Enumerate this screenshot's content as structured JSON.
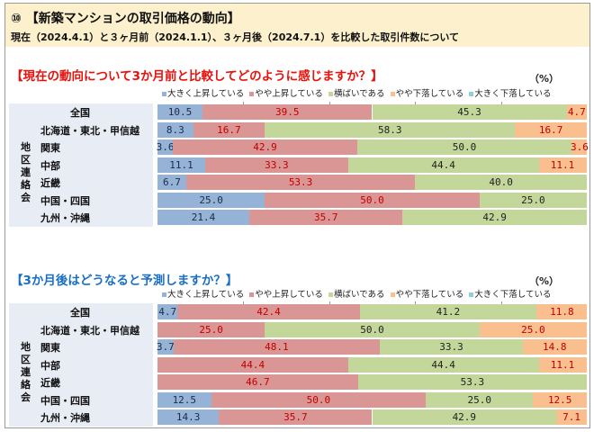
{
  "header": {
    "title": "⑩ 【新築マンションの取引価格の動向】",
    "subtitle": "現在（2024.4.1）と３ヶ月前（2024.1.1）、３ヶ月後（2024.7.1）を比較した取引件数について"
  },
  "colors": {
    "大きく上昇している": "#95b3d7",
    "やや上昇している": "#da9694",
    "横ばいである": "#c4d79b",
    "やや下落している": "#fabf8f",
    "大きく下落している": "#92cddc",
    "title1": "#e8120c",
    "title2": "#1a6fc4"
  },
  "region_group_label": "地区連絡会",
  "chart_data": [
    {
      "type": "bar",
      "stacked": true,
      "orientation": "horizontal",
      "title": "【現在の動向について3か月前と比較してどのように感じますか？】",
      "unit": "（%）",
      "legend": "top-right",
      "series_names": [
        "大きく上昇している",
        "やや上昇している",
        "横ばいである",
        "やや下落している",
        "大きく下落している"
      ],
      "categories": [
        "全国",
        "北海道・東北・甲信越",
        "関東",
        "中部",
        "近畿",
        "中国・四国",
        "九州・沖縄"
      ],
      "values": [
        [
          10.5,
          39.5,
          45.3,
          4.7,
          0
        ],
        [
          8.3,
          16.7,
          58.3,
          16.7,
          0
        ],
        [
          3.6,
          42.9,
          50.0,
          3.6,
          0
        ],
        [
          11.1,
          33.3,
          44.4,
          11.1,
          0
        ],
        [
          6.7,
          53.3,
          40.0,
          0,
          0
        ],
        [
          25.0,
          50.0,
          25.0,
          0,
          0
        ],
        [
          21.4,
          35.7,
          42.9,
          0,
          0
        ]
      ],
      "xlim": [
        0,
        100
      ]
    },
    {
      "type": "bar",
      "stacked": true,
      "orientation": "horizontal",
      "title": "【3か月後はどうなると予測しますか？】",
      "unit": "（%）",
      "legend": "top-right",
      "series_names": [
        "大きく上昇している",
        "やや上昇している",
        "横ばいである",
        "やや下落している",
        "大きく下落している"
      ],
      "categories": [
        "全国",
        "北海道・東北・甲信越",
        "関東",
        "中部",
        "近畿",
        "中国・四国",
        "九州・沖縄"
      ],
      "values": [
        [
          4.7,
          42.4,
          41.2,
          11.8,
          0
        ],
        [
          0,
          25.0,
          50.0,
          25.0,
          0
        ],
        [
          3.7,
          48.1,
          33.3,
          14.8,
          0
        ],
        [
          0,
          44.4,
          44.4,
          11.1,
          0
        ],
        [
          0,
          46.7,
          53.3,
          0,
          0
        ],
        [
          12.5,
          50.0,
          25.0,
          12.5,
          0
        ],
        [
          14.3,
          35.7,
          42.9,
          7.1,
          0
        ]
      ],
      "xlim": [
        0,
        100
      ]
    }
  ]
}
